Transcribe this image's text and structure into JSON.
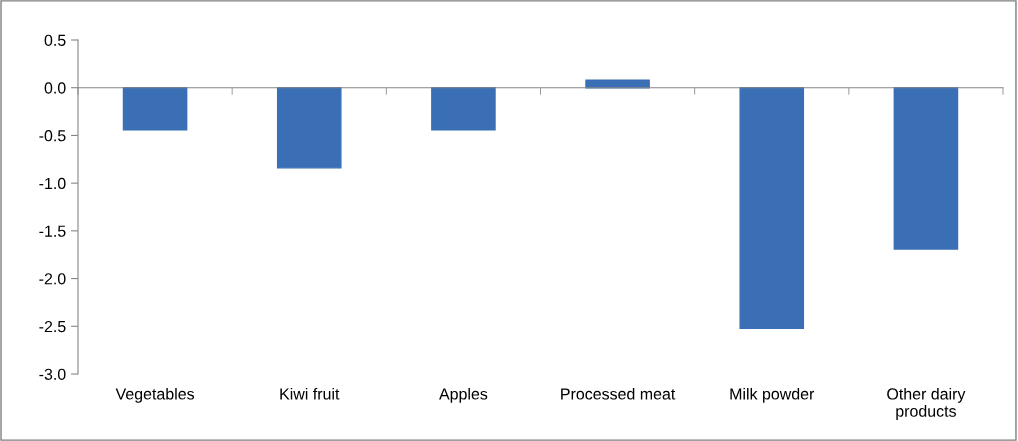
{
  "chart_data": {
    "type": "bar",
    "categories": [
      "Vegetables",
      "Kiwi fruit",
      "Apples",
      "Processed meat",
      "Milk powder",
      "Other dairy products"
    ],
    "values": [
      -0.44,
      -0.84,
      -0.44,
      0.08,
      -2.52,
      -1.69
    ],
    "color": "#3a6fb6",
    "ylim": [
      -3.0,
      0.5
    ],
    "yticks": [
      {
        "value": -3.0,
        "label": "-3.0"
      },
      {
        "value": -2.5,
        "label": "-2.5"
      },
      {
        "value": -2.0,
        "label": "-2.0"
      },
      {
        "value": -1.5,
        "label": "-1.5"
      },
      {
        "value": -1.0,
        "label": "-1.0"
      },
      {
        "value": -0.5,
        "label": "-0.5"
      },
      {
        "value": 0.0,
        "label": "0.0"
      },
      {
        "value": 0.5,
        "label": "0.5"
      }
    ]
  }
}
